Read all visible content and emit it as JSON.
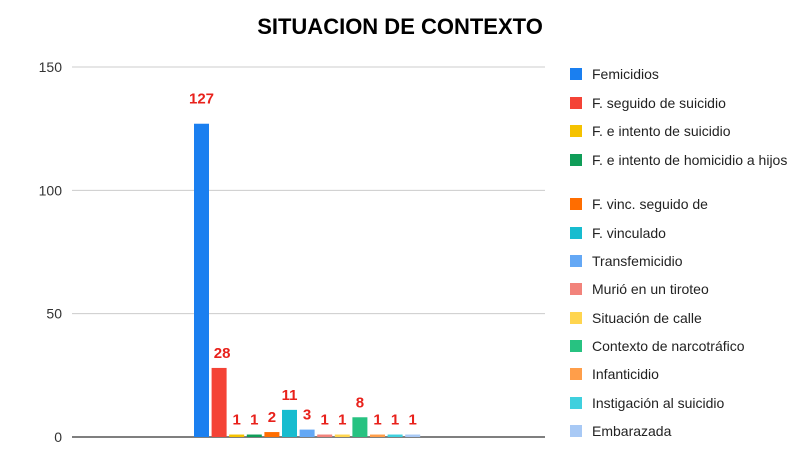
{
  "chart_data": {
    "type": "bar",
    "title": "SITUACION DE CONTEXTO",
    "xlabel": "",
    "ylabel": "",
    "ylim": [
      0,
      150
    ],
    "yticks": [
      0,
      50,
      100,
      150
    ],
    "grid": true,
    "legend_position": "right",
    "data_label_color": "#e8211b",
    "series": [
      {
        "name": "Femicidios",
        "values": [
          127
        ],
        "color": "#1a7ff0"
      },
      {
        "name": "F. seguido de suicidio",
        "values": [
          28
        ],
        "color": "#f44336"
      },
      {
        "name": "F. e intento de suicidio",
        "values": [
          1
        ],
        "color": "#f5c200"
      },
      {
        "name": "F. e intento de homicidio a hijos",
        "values": [
          1
        ],
        "color": "#0f9d58"
      },
      {
        "name": "F. vinc. seguido de",
        "values": [
          2
        ],
        "color": "#ff6d00"
      },
      {
        "name": "F. vinculado",
        "values": [
          11
        ],
        "color": "#17bccf"
      },
      {
        "name": "Transfemicidio",
        "values": [
          3
        ],
        "color": "#64a8f5"
      },
      {
        "name": "Murió en un tiroteo",
        "values": [
          1
        ],
        "color": "#f2837b"
      },
      {
        "name": "Situación de calle",
        "values": [
          1
        ],
        "color": "#ffd54f"
      },
      {
        "name": "Contexto de narcotráfico",
        "values": [
          8
        ],
        "color": "#27c281"
      },
      {
        "name": "Infanticidio",
        "values": [
          1
        ],
        "color": "#ff9e4a"
      },
      {
        "name": "Instigación al suicidio",
        "values": [
          1
        ],
        "color": "#3fd0de"
      },
      {
        "name": "Embarazada",
        "values": [
          1
        ],
        "color": "#a8c9f5"
      }
    ]
  }
}
